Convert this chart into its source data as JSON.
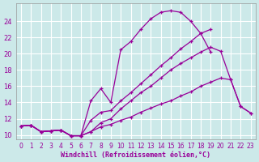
{
  "xlabel": "Windchill (Refroidissement éolien,°C)",
  "background_color": "#cce9e9",
  "grid_color": "#ffffff",
  "line_color": "#990099",
  "xlim": [
    -0.5,
    23.5
  ],
  "ylim": [
    9.5,
    26.2
  ],
  "xticks": [
    0,
    1,
    2,
    3,
    4,
    5,
    6,
    7,
    8,
    9,
    10,
    11,
    12,
    13,
    14,
    15,
    16,
    17,
    18,
    19,
    20,
    21,
    22,
    23
  ],
  "yticks": [
    10,
    12,
    14,
    16,
    18,
    20,
    22,
    24
  ],
  "lines": [
    {
      "x": [
        0,
        1,
        2,
        3,
        4,
        5,
        6,
        7,
        8,
        9,
        10,
        11,
        12,
        13,
        14,
        15,
        16,
        17,
        18,
        19,
        20,
        21,
        22,
        23
      ],
      "y": [
        11.1,
        11.2,
        10.4,
        10.5,
        10.6,
        9.9,
        9.9,
        11.8,
        12.8,
        13.0,
        14.2,
        15.2,
        16.3,
        17.4,
        18.5,
        19.5,
        20.6,
        21.5,
        22.5,
        23.0,
        null,
        null,
        null,
        null
      ]
    },
    {
      "x": [
        0,
        1,
        2,
        3,
        4,
        5,
        6,
        7,
        8,
        9,
        10,
        11,
        12,
        13,
        14,
        15,
        16,
        17,
        18,
        19,
        20,
        21,
        22,
        23
      ],
      "y": [
        11.1,
        11.2,
        10.4,
        10.5,
        10.6,
        9.9,
        9.9,
        10.4,
        11.5,
        12.0,
        13.2,
        14.2,
        15.2,
        16.0,
        17.0,
        18.0,
        18.8,
        19.5,
        20.2,
        20.8,
        20.3,
        16.8,
        13.5,
        12.7
      ]
    },
    {
      "x": [
        0,
        1,
        2,
        3,
        4,
        5,
        6,
        7,
        8,
        9,
        10,
        11,
        12,
        13,
        14,
        15,
        16,
        17,
        18,
        19,
        20,
        21,
        22,
        23
      ],
      "y": [
        11.1,
        11.2,
        10.4,
        10.5,
        10.6,
        9.9,
        9.9,
        10.4,
        11.0,
        11.3,
        11.8,
        12.2,
        12.8,
        13.3,
        13.8,
        14.2,
        14.8,
        15.3,
        16.0,
        16.5,
        17.0,
        16.8,
        13.5,
        12.7
      ]
    },
    {
      "x": [
        0,
        1,
        2,
        3,
        4,
        5,
        6,
        7,
        8,
        9,
        10,
        11,
        12,
        13,
        14,
        15,
        16,
        17,
        18,
        19,
        20,
        21,
        22,
        23
      ],
      "y": [
        11.1,
        11.2,
        10.4,
        10.5,
        10.6,
        9.9,
        9.9,
        14.2,
        15.7,
        14.0,
        20.5,
        21.5,
        23.0,
        24.3,
        25.1,
        25.3,
        25.1,
        24.0,
        22.5,
        20.2,
        null,
        null,
        null,
        null
      ]
    }
  ]
}
